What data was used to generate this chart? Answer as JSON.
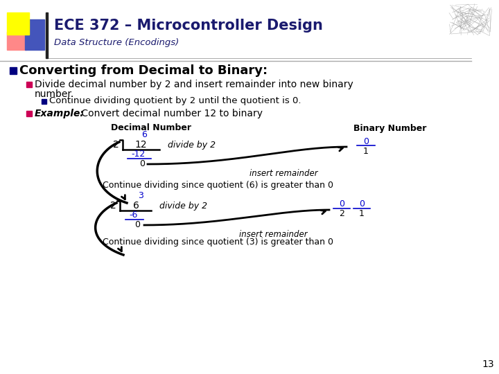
{
  "title": "ECE 372 – Microcontroller Design",
  "subtitle": "Data Structure (Encodings)",
  "slide_bg": "#ffffff",
  "title_color": "#1a1a6e",
  "subtitle_color": "#1a1a6e",
  "bullet1": "Converting from Decimal to Binary:",
  "bullet2a": "Divide decimal number by 2 and insert remainder into new binary",
  "bullet2b": "number.",
  "bullet3": "Continue dividing quotient by 2 until the quotient is 0.",
  "bullet4_italic": "Example:",
  "bullet4_rest": " Convert decimal number 12 to binary",
  "decimal_label": "Decimal Number",
  "binary_label": "Binary Number",
  "cont6": "Continue dividing since quotient (6) is greater than 0",
  "cont3": "Continue dividing since quotient (3) is greater than 0",
  "insert_rem": "insert remainder",
  "slide_number": "13",
  "text_color": "#000000",
  "blue_color": "#0000cc"
}
